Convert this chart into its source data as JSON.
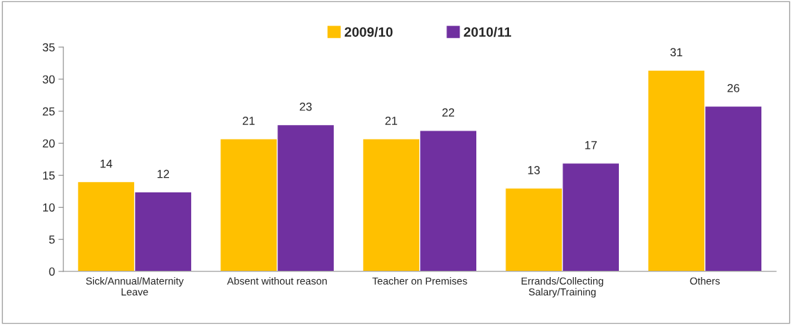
{
  "chart_data": {
    "type": "bar",
    "categories": [
      "Sick/Annual/Maternity\nLeave",
      "Absent without reason",
      "Teacher on Premises",
      "Errands/Collecting\nSalary/Training",
      "Others"
    ],
    "series": [
      {
        "name": "2009/10",
        "color": "#ffc000",
        "values": [
          14.0,
          20.7,
          20.7,
          13.0,
          31.4
        ],
        "value_labels": [
          "14",
          "21",
          "21",
          "13",
          "31"
        ]
      },
      {
        "name": "2010/11",
        "color": "#7030a0",
        "values": [
          12.4,
          22.9,
          22.0,
          16.9,
          25.8
        ],
        "value_labels": [
          "12",
          "23",
          "22",
          "17",
          "26"
        ]
      }
    ],
    "ylim": [
      0,
      35
    ],
    "yticks": [
      0,
      5,
      10,
      15,
      20,
      25,
      30,
      35
    ],
    "grid": false,
    "legend": "top"
  }
}
